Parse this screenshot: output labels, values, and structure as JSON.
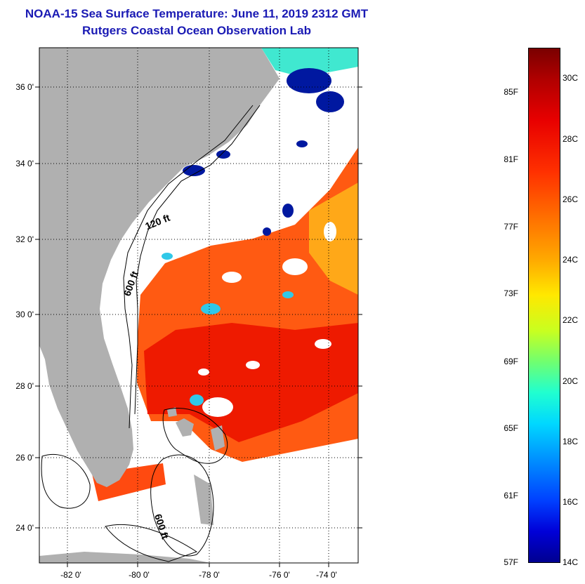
{
  "title": {
    "line1": "NOAA-15 Sea Surface Temperature:  June 11, 2019 2312 GMT",
    "line2": "Rutgers Coastal Ocean Observation Lab"
  },
  "map": {
    "lat_labels": [
      "36 0'",
      "34 0'",
      "32 0'",
      "30 0'",
      "28 0'",
      "26 0'",
      "24 0'"
    ],
    "lon_labels": [
      "-82 0'",
      "-80 0'",
      "-78 0'",
      "-76 0'",
      "-74 0'"
    ],
    "isobaths": [
      "120 ft",
      "600 ft",
      "600 ft"
    ],
    "colors": {
      "land": "#b0b0b0",
      "warm_sst": "#ff3a10",
      "hot_sst": "#ee1a00",
      "mid_sst": "#ffaa10",
      "cool_sst": "#30e0e0",
      "cold_sst": "#0010b0",
      "no_data": "#ffffff"
    }
  },
  "colorbar": {
    "fahrenheit": [
      "85F",
      "81F",
      "77F",
      "73F",
      "69F",
      "65F",
      "61F",
      "57F"
    ],
    "celsius": [
      "30C",
      "28C",
      "26C",
      "24C",
      "22C",
      "20C",
      "18C",
      "16C",
      "14C"
    ]
  }
}
